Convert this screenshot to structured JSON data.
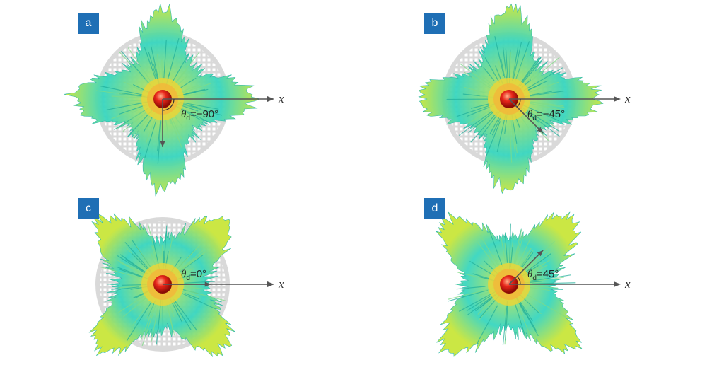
{
  "colors": {
    "badge": "#1f6fb5",
    "plate": "#d9d9d9",
    "lobe_outer": "#38d6c0",
    "lobe_mid": "#8fe07a",
    "lobe_tip": "#c9e63a",
    "core_yellow": "#e8d63a",
    "core_red": "#e8261a",
    "arrow": "#555555"
  },
  "axis_label": "x",
  "panels": [
    {
      "badge": "a",
      "theta_symbol": "θ",
      "theta_sub": "d",
      "theta_value": "=−90°",
      "theta_deg": -90,
      "with_plate": true
    },
    {
      "badge": "b",
      "theta_symbol": "θ",
      "theta_sub": "d",
      "theta_value": "=−45°",
      "theta_deg": -45,
      "with_plate": true
    },
    {
      "badge": "c",
      "theta_symbol": "θ",
      "theta_sub": "d",
      "theta_value": "=0°",
      "theta_deg": 0,
      "with_plate": true
    },
    {
      "badge": "d",
      "theta_symbol": "θ",
      "theta_sub": "d",
      "theta_value": "=45°",
      "theta_deg": 45,
      "with_plate": false
    }
  ]
}
